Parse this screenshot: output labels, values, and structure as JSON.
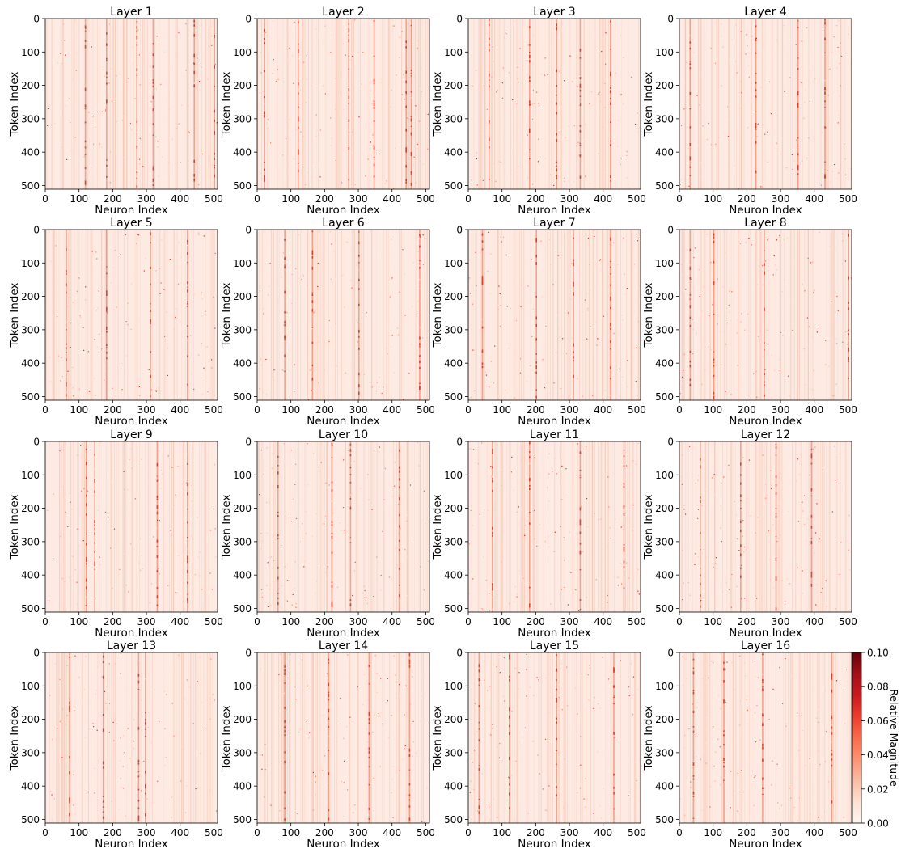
{
  "chart_data": {
    "type": "heatmap",
    "colormap": "Reds",
    "layout": "4x4 grid of panels",
    "shared_axes": {
      "xlabel": "Neuron Index",
      "ylabel": "Token Index",
      "xlim": [
        0,
        511
      ],
      "ylim": [
        511,
        0
      ],
      "x_ticks": [
        0,
        100,
        200,
        300,
        400,
        500
      ],
      "y_ticks": [
        0,
        100,
        200,
        300,
        400,
        500
      ]
    },
    "colorbar": {
      "label": "Relative Magnitude",
      "range": [
        0.0,
        0.1
      ],
      "ticks": [
        "0.00",
        "0.02",
        "0.04",
        "0.06",
        "0.08",
        "0.10"
      ]
    },
    "panels": [
      {
        "title": "Layer 1",
        "hot_columns": [
          117,
          180,
          270,
          318,
          440,
          500
        ]
      },
      {
        "title": "Layer 2",
        "hot_columns": [
          20,
          120,
          270,
          345,
          440,
          455
        ]
      },
      {
        "title": "Layer 3",
        "hot_columns": [
          60,
          180,
          260,
          330,
          420
        ]
      },
      {
        "title": "Layer 4",
        "hot_columns": [
          30,
          225,
          350,
          430
        ]
      },
      {
        "title": "Layer 5",
        "hot_columns": [
          60,
          180,
          310,
          420
        ]
      },
      {
        "title": "Layer 6",
        "hot_columns": [
          80,
          162,
          300,
          480
        ]
      },
      {
        "title": "Layer 7",
        "hot_columns": [
          40,
          200,
          310,
          420
        ]
      },
      {
        "title": "Layer 8",
        "hot_columns": [
          30,
          100,
          250,
          500
        ]
      },
      {
        "title": "Layer 9",
        "hot_columns": [
          120,
          145,
          330,
          420
        ]
      },
      {
        "title": "Layer 10",
        "hot_columns": [
          60,
          220,
          275,
          420
        ]
      },
      {
        "title": "Layer 11",
        "hot_columns": [
          70,
          180,
          330,
          460
        ]
      },
      {
        "title": "Layer 12",
        "hot_columns": [
          60,
          180,
          285,
          390
        ]
      },
      {
        "title": "Layer 13",
        "hot_columns": [
          70,
          170,
          275,
          295
        ]
      },
      {
        "title": "Layer 14",
        "hot_columns": [
          80,
          210,
          330,
          450
        ]
      },
      {
        "title": "Layer 15",
        "hot_columns": [
          30,
          120,
          260,
          430
        ]
      },
      {
        "title": "Layer 16",
        "hot_columns": [
          40,
          130,
          245,
          450
        ]
      }
    ]
  }
}
